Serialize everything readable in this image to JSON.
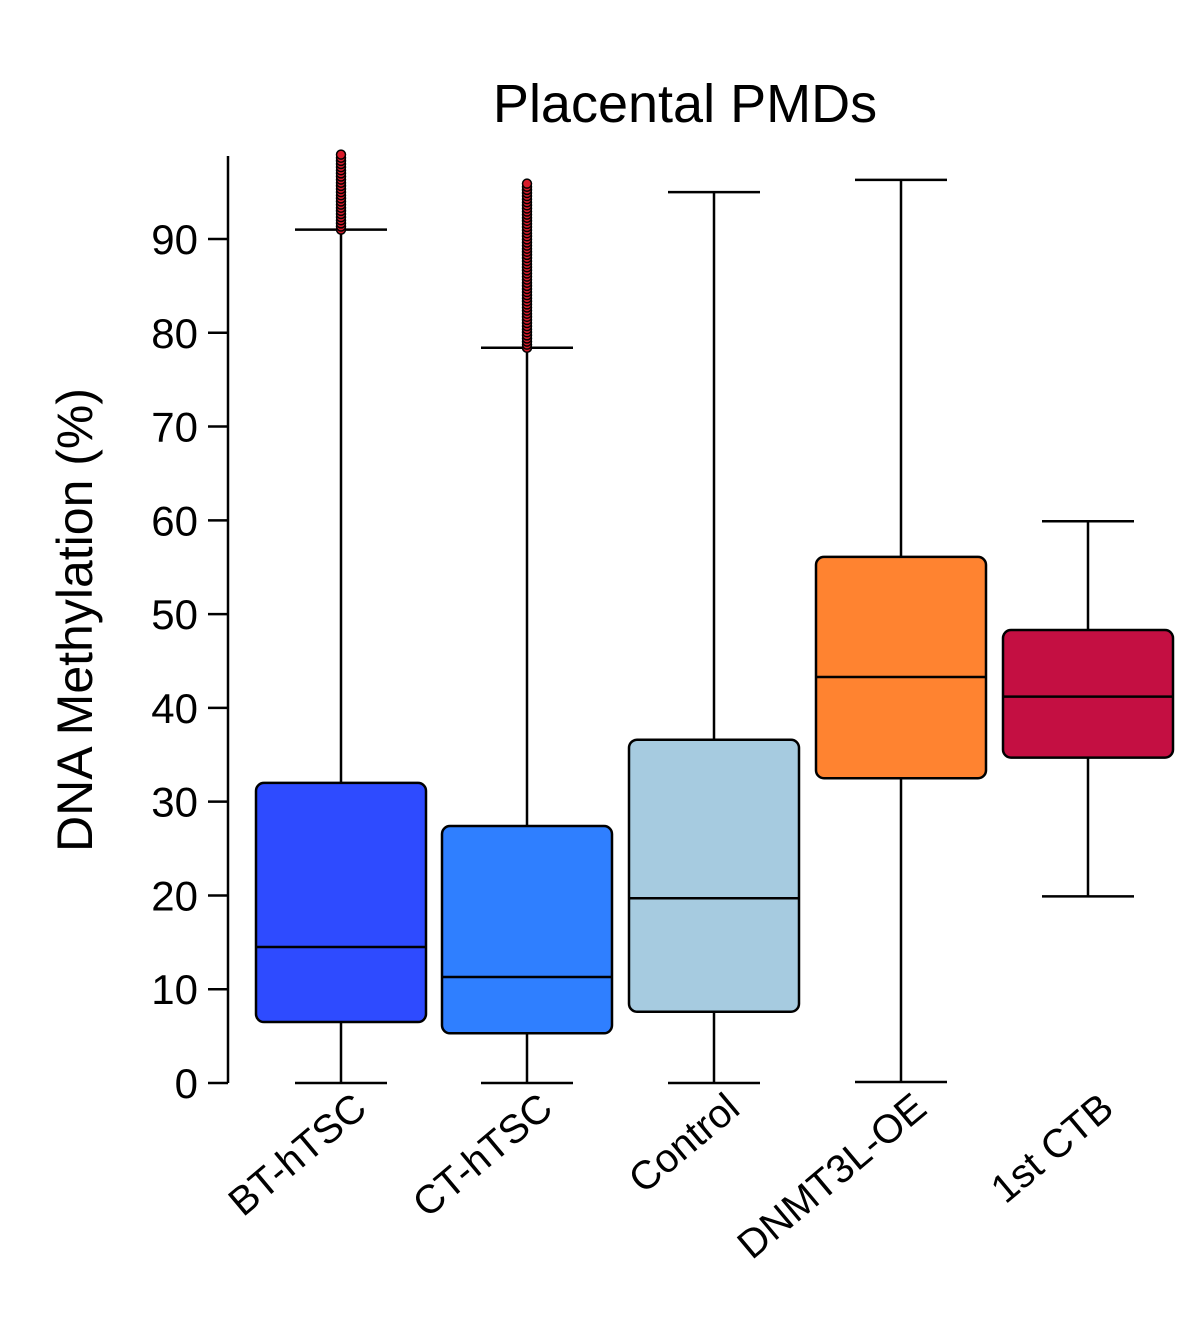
{
  "chart_data": {
    "type": "box",
    "title": "Placental PMDs",
    "xlabel": "",
    "ylabel": "DNA Methylation (%)",
    "ylim": [
      0,
      100
    ],
    "yticks": [
      0,
      10,
      20,
      30,
      40,
      50,
      60,
      70,
      80,
      90
    ],
    "grid": false,
    "categories": [
      "BT-hTSC",
      "CT-hTSC",
      "Control",
      "DNMT3L-OE",
      "1st CTB"
    ],
    "series": [
      {
        "category": "BT-hTSC",
        "color": "#2e4bff",
        "whisker_low": 0,
        "q1": 6.5,
        "median": 14.5,
        "q3": 32,
        "whisker_high": 91,
        "outlier_range": [
          91,
          99
        ]
      },
      {
        "category": "CT-hTSC",
        "color": "#2f7fff",
        "whisker_low": 0,
        "q1": 5.3,
        "median": 11.3,
        "q3": 27.4,
        "whisker_high": 78.4,
        "outlier_range": [
          78.4,
          95.9
        ]
      },
      {
        "category": "Control",
        "color": "#a6cbe0",
        "whisker_low": 0,
        "q1": 7.6,
        "median": 19.7,
        "q3": 36.6,
        "whisker_high": 95,
        "outlier_range": null
      },
      {
        "category": "DNMT3L-OE",
        "color": "#ff8330",
        "whisker_low": 0.1,
        "q1": 32.5,
        "median": 43.3,
        "q3": 56.1,
        "whisker_high": 96.3,
        "outlier_range": null
      },
      {
        "category": "1st CTB",
        "color": "#c40f42",
        "whisker_low": 19.9,
        "q1": 34.7,
        "median": 41.2,
        "q3": 48.3,
        "whisker_high": 59.9,
        "outlier_range": null
      }
    ]
  }
}
